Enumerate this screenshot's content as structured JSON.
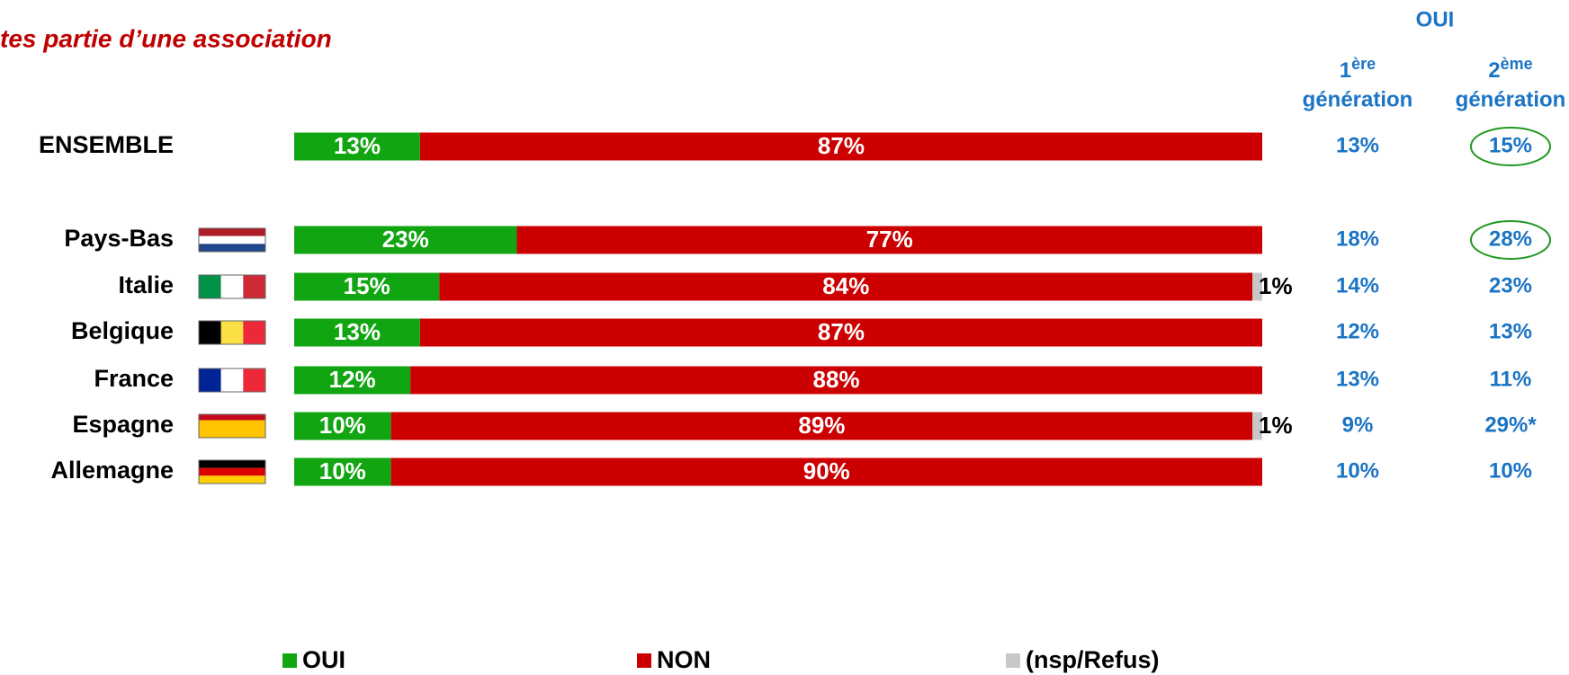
{
  "chart_data": {
    "type": "stacked_barh",
    "title": "tes partie d’une association",
    "categories": [
      "ENSEMBLE",
      "Pays-Bas",
      "Italie",
      "Belgique",
      "France",
      "Espagne",
      "Allemagne"
    ],
    "xlim": [
      0,
      100
    ],
    "series": [
      {
        "name": "OUI",
        "color": "#12a512",
        "values": [
          13,
          23,
          15,
          13,
          12,
          10,
          10
        ],
        "value_labels": [
          "13%",
          "23%",
          "15%",
          "13%",
          "12%",
          "10%",
          "10%"
        ]
      },
      {
        "name": "NON",
        "color": "#cc0000",
        "values": [
          87,
          77,
          84,
          87,
          88,
          89,
          90
        ],
        "value_labels": [
          "87%",
          "77%",
          "84%",
          "87%",
          "88%",
          "89%",
          "90%"
        ]
      },
      {
        "name": "(nsp/Refus)",
        "color": "#c8c8c8",
        "values": [
          null,
          null,
          1,
          null,
          null,
          1,
          null
        ],
        "value_labels": [
          null,
          null,
          "1%",
          null,
          null,
          "1%",
          null
        ]
      }
    ],
    "table": {
      "title": "OUI",
      "columns": [
        {
          "num": "1",
          "sup": "ère",
          "label": "génération"
        },
        {
          "num": "2",
          "sup": "ème",
          "label": "génération"
        }
      ],
      "rows": [
        [
          "13%",
          "15%"
        ],
        [
          "18%",
          "28%"
        ],
        [
          "14%",
          "23%"
        ],
        [
          "12%",
          "13%"
        ],
        [
          "13%",
          "11%"
        ],
        [
          "9%",
          "29%*"
        ],
        [
          "10%",
          "10%"
        ]
      ],
      "circled_rows": [
        0,
        1
      ]
    }
  }
}
